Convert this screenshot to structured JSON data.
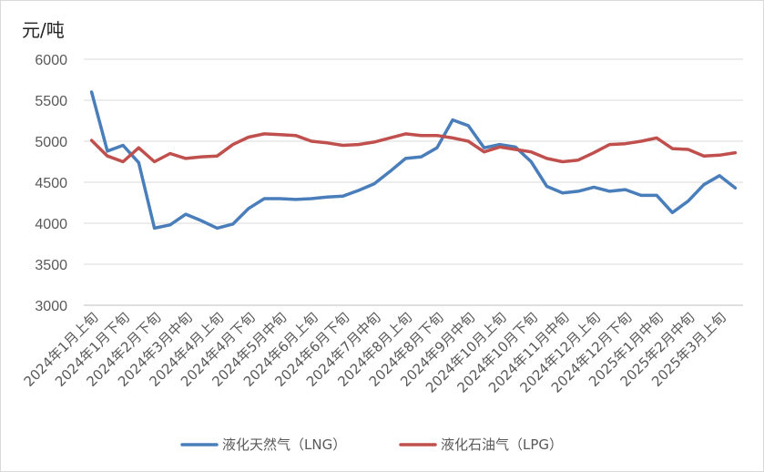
{
  "chart_data": {
    "type": "line",
    "title": "",
    "ylabel": "元/吨",
    "xlabel": "",
    "ylim": [
      3000,
      6000
    ],
    "yticks": [
      3000,
      3500,
      4000,
      4500,
      5000,
      5500,
      6000
    ],
    "grid": true,
    "legend_position": "bottom",
    "x_labels": [
      "2024年1月上旬",
      "2024年1月下旬",
      "2024年2月下旬",
      "2024年3月中旬",
      "2024年4月上旬",
      "2024年4月下旬",
      "2024年5月中旬",
      "2024年6月上旬",
      "2024年6月下旬",
      "2024年7月中旬",
      "2024年8月上旬",
      "2024年8月下旬",
      "2024年9月中旬",
      "2024年10月上旬",
      "2024年10月下旬",
      "2024年11月中旬",
      "2024年12月上旬",
      "2024年12月下旬",
      "2025年1月中旬",
      "2025年2月中旬",
      "2025年3月上旬"
    ],
    "series": [
      {
        "name": "液化天然气（LNG）",
        "color": "#4a7ebb",
        "values": [
          5600,
          4880,
          4950,
          4740,
          3940,
          3980,
          4110,
          4030,
          3940,
          3990,
          4180,
          4300,
          4300,
          4290,
          4300,
          4320,
          4330,
          4400,
          4480,
          4630,
          4790,
          4810,
          4920,
          5260,
          5190,
          4920,
          4960,
          4930,
          4750,
          4450,
          4370,
          4390,
          4440,
          4390,
          4410,
          4340,
          4340,
          4130,
          4270,
          4470,
          4580,
          4430
        ]
      },
      {
        "name": "液化石油气（LPG）",
        "color": "#c0504d",
        "values": [
          5010,
          4820,
          4750,
          4920,
          4750,
          4850,
          4790,
          4810,
          4820,
          4960,
          5050,
          5090,
          5080,
          5070,
          5000,
          4980,
          4950,
          4960,
          4990,
          5040,
          5090,
          5070,
          5070,
          5040,
          5000,
          4870,
          4930,
          4900,
          4870,
          4790,
          4750,
          4770,
          4860,
          4960,
          4970,
          5000,
          5040,
          4910,
          4900,
          4820,
          4830,
          4860
        ]
      }
    ]
  }
}
